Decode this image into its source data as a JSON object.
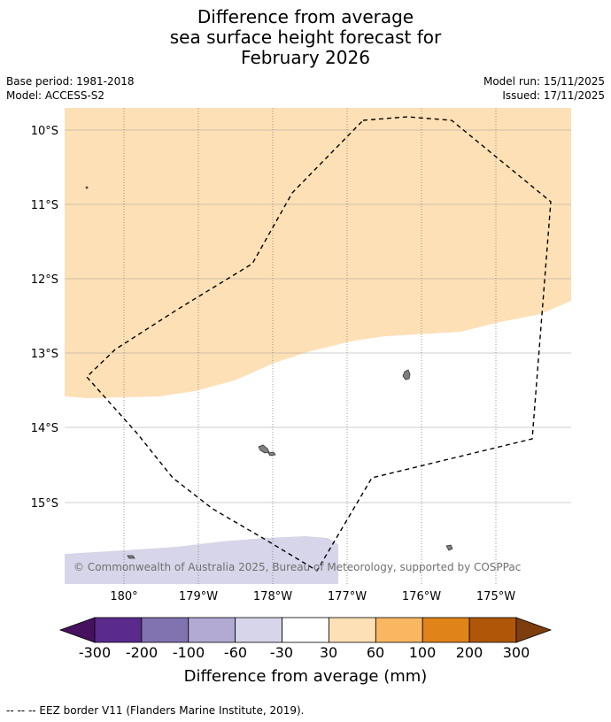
{
  "title": {
    "line1": "Difference from average",
    "line2": "sea surface height forecast for",
    "line3": "February 2026"
  },
  "meta": {
    "base_period": "Base period: 1981-2018",
    "model": "Model: ACCESS-S2",
    "model_run": "Model run: 15/11/2025",
    "issued": "Issued: 17/11/2025"
  },
  "map": {
    "lat_labels": [
      "10°S",
      "11°S",
      "12°S",
      "13°S",
      "14°S",
      "15°S"
    ],
    "lon_labels": [
      "180°",
      "179°W",
      "178°W",
      "177°W",
      "176°W",
      "175°W"
    ],
    "copyright": "© Commonwealth of Australia 2025, Bureau of Meteorology, supported by COSPPac",
    "colors": {
      "band_30_60": "#fde0b6",
      "band_neg60_neg30": "#d6d5e9",
      "land": "#808080",
      "eez_line": "#000000"
    }
  },
  "colorbar": {
    "label": "Difference from average (mm)",
    "ticks": [
      "-300",
      "-200",
      "-100",
      "-60",
      "-30",
      "30",
      "60",
      "100",
      "200",
      "300"
    ],
    "colors": [
      "#46125f",
      "#5a2a8c",
      "#8172b0",
      "#b2aad2",
      "#d6d5e9",
      "#ffffff",
      "#fde0b6",
      "#f9b762",
      "#e08318",
      "#b05608",
      "#7d3d0c"
    ]
  },
  "footer": {
    "legend": "--  --  -- EEZ border V11 (Flanders Marine Institute, 2019)."
  }
}
